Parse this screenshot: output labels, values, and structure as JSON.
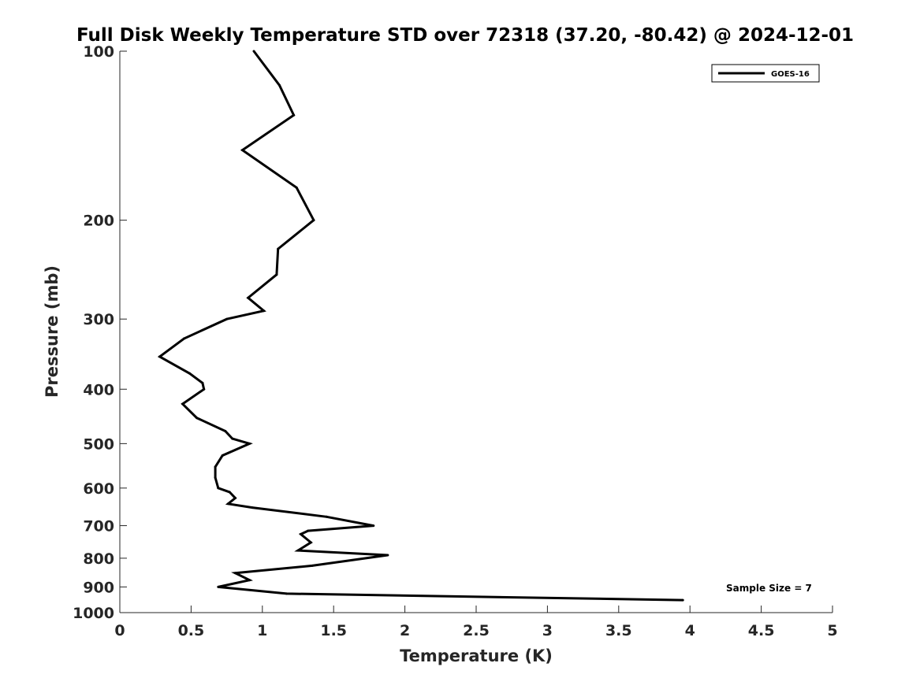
{
  "chart_data": {
    "type": "line",
    "title": "Full Disk Weekly Temperature STD over 72318 (37.20, -80.42) @ 2024-12-01",
    "xlabel": "Temperature (K)",
    "ylabel": "Pressure (mb)",
    "xlim": [
      0,
      5
    ],
    "ylim": [
      1000,
      100
    ],
    "y_scale": "log",
    "y_reversed": true,
    "x_ticks": [
      "0",
      "0.5",
      "1",
      "1.5",
      "2",
      "2.5",
      "3",
      "3.5",
      "4",
      "4.5",
      "5"
    ],
    "y_ticks": [
      "100",
      "200",
      "300",
      "400",
      "500",
      "600",
      "700",
      "800",
      "900",
      "1000"
    ],
    "grid": false,
    "legend_position": "top-right",
    "series": [
      {
        "name": "GOES-16",
        "color": "#000000",
        "points": [
          [
            0.94,
            100
          ],
          [
            1.12,
            115
          ],
          [
            1.22,
            130
          ],
          [
            0.86,
            150
          ],
          [
            1.24,
            175
          ],
          [
            1.36,
            200
          ],
          [
            1.11,
            225
          ],
          [
            1.1,
            250
          ],
          [
            0.9,
            275
          ],
          [
            1.01,
            290
          ],
          [
            0.75,
            300
          ],
          [
            0.45,
            325
          ],
          [
            0.28,
            350
          ],
          [
            0.49,
            375
          ],
          [
            0.58,
            390
          ],
          [
            0.59,
            400
          ],
          [
            0.44,
            425
          ],
          [
            0.54,
            450
          ],
          [
            0.74,
            475
          ],
          [
            0.79,
            490
          ],
          [
            0.91,
            500
          ],
          [
            0.72,
            525
          ],
          [
            0.67,
            550
          ],
          [
            0.67,
            575
          ],
          [
            0.69,
            600
          ],
          [
            0.77,
            610
          ],
          [
            0.81,
            625
          ],
          [
            0.76,
            640
          ],
          [
            0.93,
            650
          ],
          [
            1.45,
            675
          ],
          [
            1.78,
            700
          ],
          [
            1.32,
            715
          ],
          [
            1.27,
            725
          ],
          [
            1.34,
            750
          ],
          [
            1.25,
            775
          ],
          [
            1.88,
            790
          ],
          [
            1.35,
            825
          ],
          [
            0.81,
            850
          ],
          [
            0.91,
            875
          ],
          [
            0.69,
            900
          ],
          [
            1.17,
            925
          ],
          [
            3.95,
            950
          ]
        ]
      }
    ],
    "annotation": "Sample Size = 7"
  }
}
